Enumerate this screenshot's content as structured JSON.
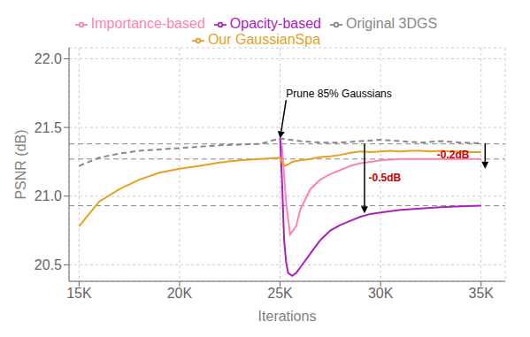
{
  "chart_data": {
    "type": "line",
    "xlabel": "Iterations",
    "ylabel": "PSNR  (dB)",
    "xlim": [
      14500,
      36200
    ],
    "ylim": [
      20.38,
      22.08
    ],
    "xticks": [
      {
        "value": 15000,
        "label": "15K"
      },
      {
        "value": 20000,
        "label": "20K"
      },
      {
        "value": 25000,
        "label": "25K"
      },
      {
        "value": 30000,
        "label": "30K"
      },
      {
        "value": 35000,
        "label": "35K"
      }
    ],
    "yticks": [
      20.5,
      {
        "value": 21.0,
        "label": "21.0"
      },
      21.5,
      {
        "value": 22.0,
        "label": "22.0"
      }
    ],
    "grid": true,
    "legend": "top",
    "hlines": [
      21.38,
      21.27,
      20.93
    ],
    "hline_color": "#888888",
    "series": [
      {
        "name": "Original 3DGS",
        "color": "#888888",
        "line_style": "dashed",
        "x": [
          15000,
          15500,
          16000,
          17000,
          18000,
          19000,
          20000,
          21000,
          22000,
          23000,
          24000,
          25000,
          26000,
          27000,
          28000,
          29000,
          30000,
          31000,
          32000,
          33000,
          34000,
          35000
        ],
        "values": [
          21.22,
          21.25,
          21.28,
          21.31,
          21.33,
          21.34,
          21.35,
          21.36,
          21.37,
          21.375,
          21.38,
          21.42,
          21.4,
          21.39,
          21.39,
          21.4,
          21.41,
          21.4,
          21.39,
          21.4,
          21.39,
          21.385
        ]
      },
      {
        "name": "Importance-based",
        "color": "#ff82b4",
        "line_style": "solid",
        "x": [
          25000,
          25100,
          25300,
          25500,
          25800,
          26000,
          26500,
          27000,
          27500,
          28000,
          28500,
          29000,
          29500,
          30000,
          31000,
          32000,
          33000,
          34000,
          35000
        ],
        "values": [
          21.42,
          21.35,
          20.95,
          20.72,
          20.78,
          20.9,
          21.05,
          21.12,
          21.16,
          21.19,
          21.22,
          21.24,
          21.25,
          21.26,
          21.27,
          21.27,
          21.27,
          21.27,
          21.27
        ]
      },
      {
        "name": "Opacity-based",
        "color": "#aa22bb",
        "line_style": "solid",
        "x": [
          25000,
          25100,
          25200,
          25300,
          25400,
          25600,
          25800,
          26000,
          26500,
          27000,
          27500,
          28000,
          28500,
          29000,
          29500,
          30000,
          30500,
          31000,
          32000,
          33000,
          34000,
          35000
        ],
        "values": [
          21.42,
          21.1,
          20.68,
          20.52,
          20.44,
          20.42,
          20.44,
          20.48,
          20.58,
          20.68,
          20.75,
          20.79,
          20.82,
          20.85,
          20.87,
          20.88,
          20.89,
          20.9,
          20.91,
          20.92,
          20.925,
          20.93
        ]
      },
      {
        "name": "Our GaussianSpa",
        "color": "#e8a020",
        "line_style": "solid",
        "x": [
          15000,
          15500,
          16000,
          17000,
          18000,
          19000,
          20000,
          21000,
          22000,
          23000,
          24000,
          25000,
          25000,
          25200,
          25400,
          25600,
          26000,
          26500,
          27000,
          27500,
          28000,
          28500,
          29000,
          29500,
          30000,
          30500,
          31000,
          31500,
          32000,
          32500,
          33000,
          33500,
          34000,
          34500,
          35000
        ],
        "values": [
          20.78,
          20.87,
          20.96,
          21.05,
          21.12,
          21.17,
          21.2,
          21.22,
          21.245,
          21.26,
          21.27,
          21.28,
          21.28,
          21.22,
          21.23,
          21.25,
          21.26,
          21.27,
          21.285,
          21.29,
          21.3,
          21.315,
          21.325,
          21.32,
          21.325,
          21.33,
          21.325,
          21.33,
          21.33,
          21.325,
          21.33,
          21.325,
          21.325,
          21.32,
          21.32
        ]
      }
    ],
    "annotations": [
      {
        "text": "Prune 85% Gaussians",
        "x": 25300,
        "y": 21.7,
        "arrow_to": {
          "x": 25000,
          "y": 21.42
        }
      },
      {
        "text": "-0.5dB",
        "color": "#cc0000",
        "label_x": 29400,
        "arrow": {
          "x": 29200,
          "y_start": 21.38,
          "y_end": 20.875
        }
      },
      {
        "text": "-0.2dB",
        "color": "#cc0000",
        "label_x": 32800,
        "arrow": {
          "x": 35200,
          "y_start": 21.385,
          "y_end": 21.2
        }
      }
    ]
  }
}
